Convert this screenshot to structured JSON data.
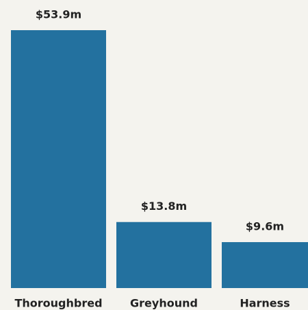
{
  "chart_data": {
    "type": "bar",
    "categories": [
      "Thoroughbred",
      "Greyhound",
      "Harness"
    ],
    "values": [
      53.9,
      13.8,
      9.6
    ],
    "value_labels": [
      "$53.9m",
      "$13.8m",
      "$9.6m"
    ],
    "color": "#23719f"
  }
}
